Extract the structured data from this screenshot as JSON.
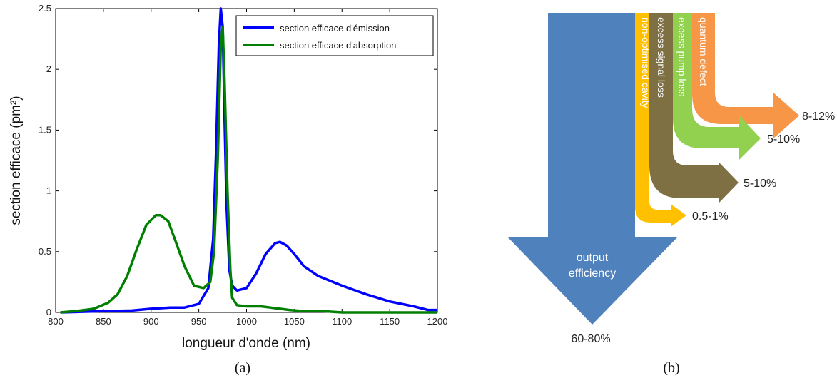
{
  "panel_labels": {
    "a": "(a)",
    "b": "(b)"
  },
  "chart_data": [
    {
      "type": "line",
      "xlabel": "longueur d'onde (nm)",
      "ylabel": "section efficace (pm²)",
      "xlim": [
        800,
        1200
      ],
      "ylim": [
        0,
        2.5
      ],
      "xticks": [
        800,
        850,
        900,
        950,
        1000,
        1050,
        1100,
        1150,
        1200
      ],
      "yticks": [
        0,
        0.5,
        1,
        1.5,
        2,
        2.5
      ],
      "legend_position": "top-right",
      "grid": false,
      "series": [
        {
          "name": "section efficace d'émission",
          "color": "#0000ff",
          "x": [
            805,
            850,
            880,
            900,
            920,
            935,
            950,
            960,
            965,
            968,
            971,
            973,
            975,
            977,
            979,
            982,
            985,
            990,
            1000,
            1010,
            1020,
            1030,
            1035,
            1042,
            1050,
            1060,
            1075,
            1100,
            1125,
            1150,
            1175,
            1190,
            1200
          ],
          "y": [
            0.0,
            0.01,
            0.015,
            0.03,
            0.04,
            0.04,
            0.07,
            0.2,
            0.6,
            1.3,
            2.2,
            2.5,
            2.35,
            1.6,
            0.9,
            0.35,
            0.22,
            0.18,
            0.2,
            0.32,
            0.48,
            0.57,
            0.58,
            0.55,
            0.48,
            0.38,
            0.3,
            0.22,
            0.15,
            0.09,
            0.05,
            0.02,
            0.02
          ]
        },
        {
          "name": "section efficace d'absorption",
          "color": "#007f00",
          "x": [
            805,
            820,
            840,
            855,
            865,
            875,
            885,
            895,
            905,
            910,
            918,
            925,
            935,
            945,
            955,
            962,
            966,
            970,
            973,
            975,
            977,
            980,
            983,
            985,
            990,
            1000,
            1015,
            1025,
            1035,
            1045,
            1060,
            1080,
            1100,
            1150,
            1200
          ],
          "y": [
            0.0,
            0.01,
            0.03,
            0.08,
            0.15,
            0.3,
            0.52,
            0.72,
            0.8,
            0.8,
            0.75,
            0.6,
            0.38,
            0.22,
            0.2,
            0.25,
            0.5,
            1.3,
            2.2,
            2.35,
            1.9,
            1.0,
            0.35,
            0.12,
            0.06,
            0.05,
            0.05,
            0.04,
            0.03,
            0.02,
            0.01,
            0.01,
            0.0,
            0.0,
            0.0
          ]
        }
      ]
    },
    {
      "type": "sankey",
      "input": {
        "label": "output efficiency",
        "value": "60-80%",
        "color": "#4f81bd"
      },
      "flows": [
        {
          "label": "non-optimised cavity",
          "value": "0.5-1%",
          "color": "#ffc000"
        },
        {
          "label": "excess signal loss",
          "value": "5-10%",
          "color": "#7f7044"
        },
        {
          "label": "excess pump loss",
          "value": "5-10%",
          "color": "#92d050"
        },
        {
          "label": "quantum defect",
          "value": "8-12%",
          "color": "#f79646"
        }
      ]
    }
  ]
}
